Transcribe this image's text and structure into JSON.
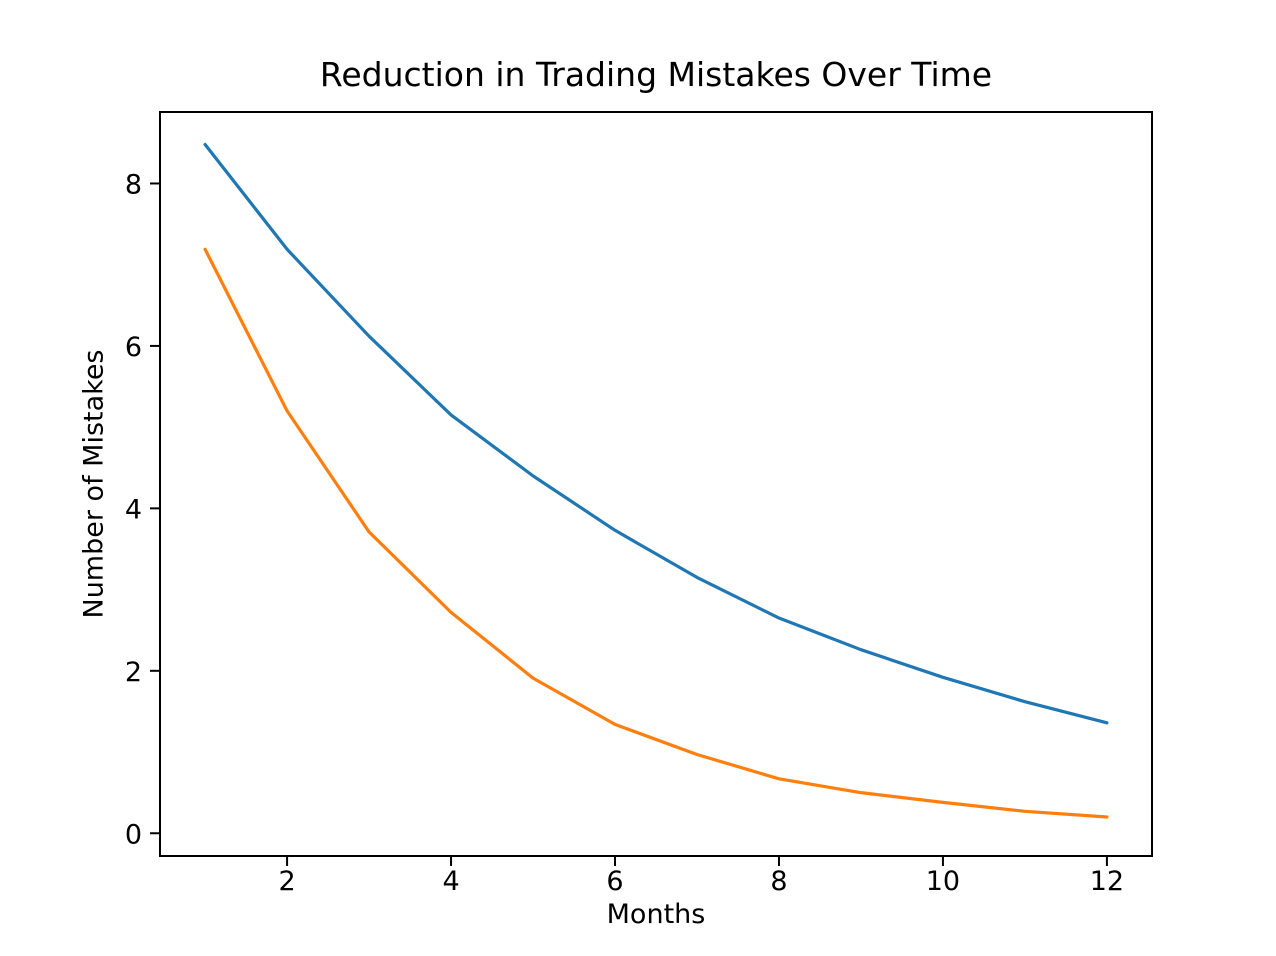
{
  "chart_data": {
    "type": "line",
    "title": "Reduction in Trading Mistakes Over Time",
    "xlabel": "Months",
    "ylabel": "Number of Mistakes",
    "x": [
      1,
      2,
      3,
      4,
      5,
      6,
      7,
      8,
      9,
      10,
      11,
      12
    ],
    "series": [
      {
        "name": "blue-line",
        "color": "#1f77b4",
        "values": [
          8.48,
          7.19,
          6.12,
          5.15,
          4.4,
          3.73,
          3.15,
          2.65,
          2.26,
          1.92,
          1.62,
          1.36
        ]
      },
      {
        "name": "orange-line",
        "color": "#ff7f0e",
        "values": [
          7.19,
          5.2,
          3.71,
          2.72,
          1.91,
          1.34,
          0.97,
          0.67,
          0.5,
          0.38,
          0.27,
          0.2
        ]
      }
    ],
    "xticks": [
      2,
      4,
      6,
      8,
      10,
      12
    ],
    "yticks": [
      0,
      2,
      4,
      6,
      8
    ],
    "xlim": [
      0.45,
      12.55
    ],
    "ylim": [
      -0.28,
      8.88
    ],
    "grid": false,
    "legend_position": "none",
    "background_color": "#ffffff",
    "spine_color": "#000000",
    "line_width": 3.2
  }
}
